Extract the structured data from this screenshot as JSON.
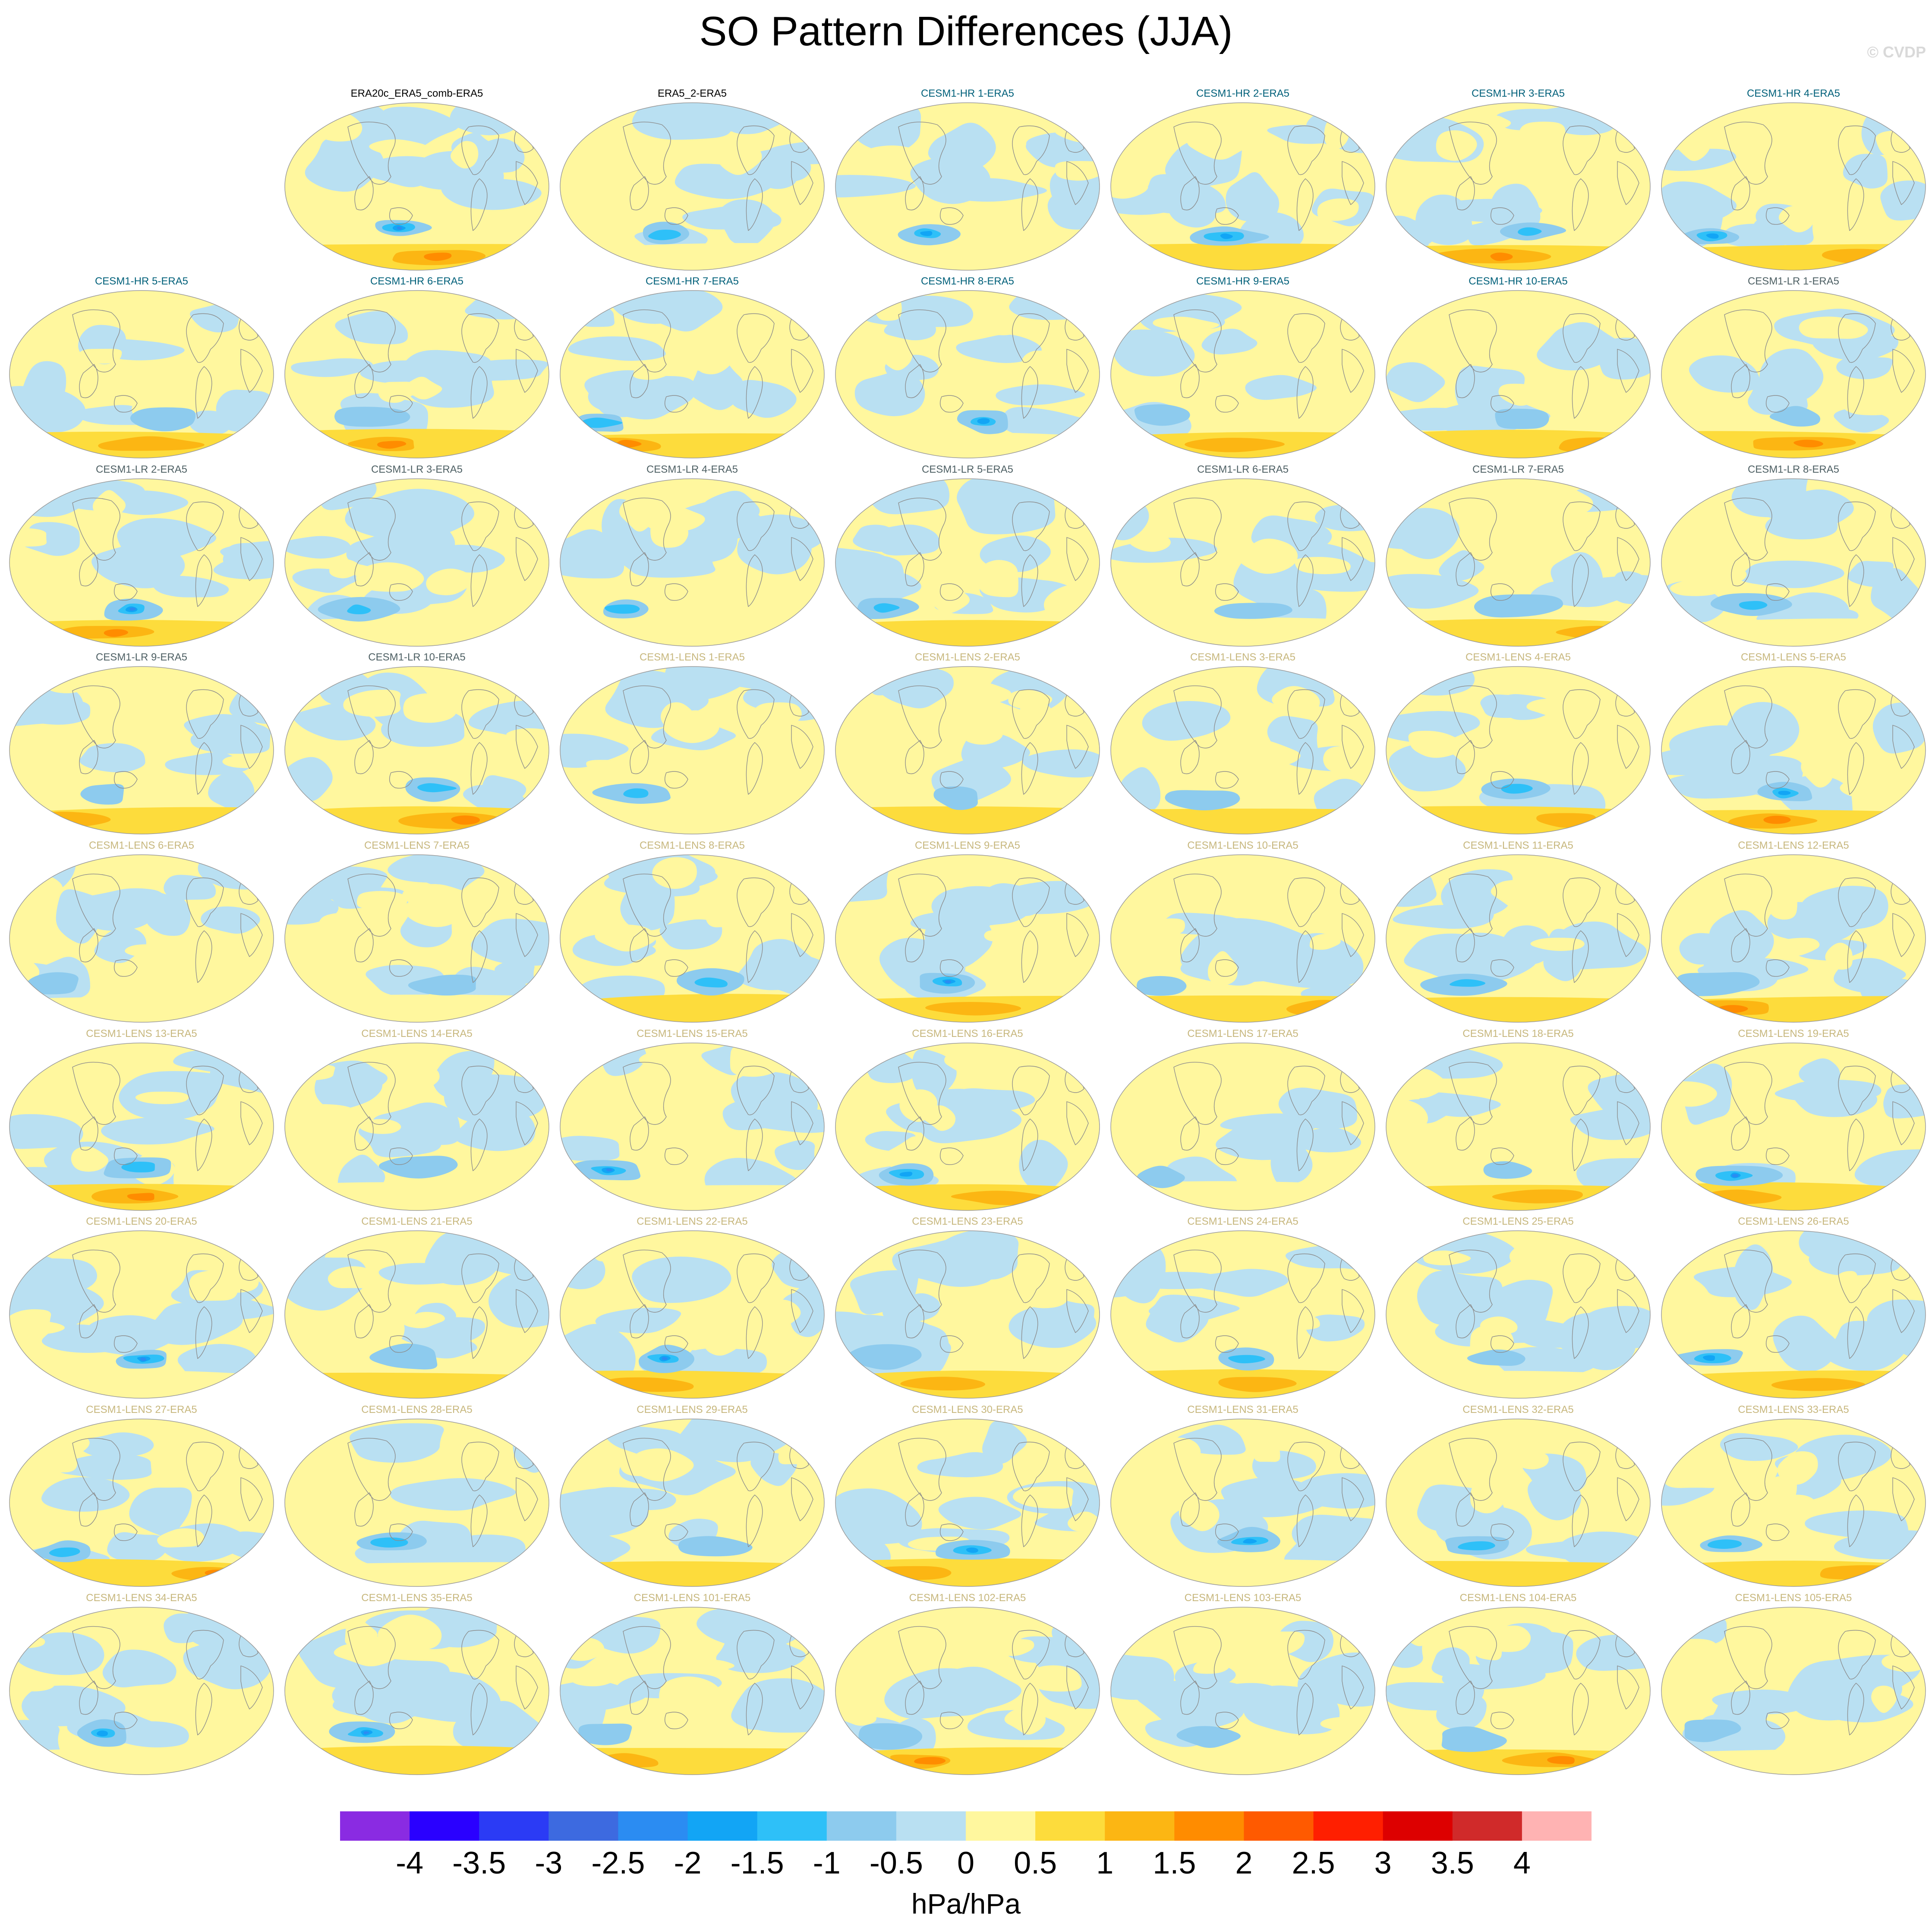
{
  "figure": {
    "title": "SO Pattern Differences (JJA)",
    "credit": "© CVDP",
    "units": "hPa/hPa"
  },
  "colorbar": {
    "tick_labels": [
      "-4",
      "-3.5",
      "-3",
      "-2.5",
      "-2",
      "-1.5",
      "-1",
      "-0.5",
      "0",
      "0.5",
      "1",
      "1.5",
      "2",
      "2.5",
      "3",
      "3.5",
      "4"
    ],
    "colors": [
      "#8a2be2",
      "#2a00ff",
      "#2b3bf5",
      "#3d6ae0",
      "#2b8cf2",
      "#12a5f5",
      "#2ec0f8",
      "#8dcbee",
      "#b9e0f2",
      "#fff79e",
      "#fddc3c",
      "#fcb613",
      "#ff8c00",
      "#ff5a00",
      "#ff1f00",
      "#dd0000",
      "#d02a2a",
      "#ffb3b3"
    ]
  },
  "groups": {
    "ERA": "#000000",
    "CESM1-HR": "#00607a",
    "CESM1-LR": "#4d5f63",
    "CESM1-LENS": "#c7b77d"
  },
  "panels": [
    {
      "label": "ERA20c_ERA5_comb-ERA5",
      "group": "ERA",
      "row": 0,
      "col": 1
    },
    {
      "label": "ERA5_2-ERA5",
      "group": "ERA",
      "row": 0,
      "col": 2
    },
    {
      "label": "CESM1-HR 1-ERA5",
      "group": "CESM1-HR",
      "row": 0,
      "col": 3
    },
    {
      "label": "CESM1-HR 2-ERA5",
      "group": "CESM1-HR",
      "row": 0,
      "col": 4
    },
    {
      "label": "CESM1-HR 3-ERA5",
      "group": "CESM1-HR",
      "row": 0,
      "col": 5
    },
    {
      "label": "CESM1-HR 4-ERA5",
      "group": "CESM1-HR",
      "row": 0,
      "col": 6
    },
    {
      "label": "CESM1-HR 5-ERA5",
      "group": "CESM1-HR",
      "row": 1,
      "col": 0
    },
    {
      "label": "CESM1-HR 6-ERA5",
      "group": "CESM1-HR",
      "row": 1,
      "col": 1
    },
    {
      "label": "CESM1-HR 7-ERA5",
      "group": "CESM1-HR",
      "row": 1,
      "col": 2
    },
    {
      "label": "CESM1-HR 8-ERA5",
      "group": "CESM1-HR",
      "row": 1,
      "col": 3
    },
    {
      "label": "CESM1-HR 9-ERA5",
      "group": "CESM1-HR",
      "row": 1,
      "col": 4
    },
    {
      "label": "CESM1-HR 10-ERA5",
      "group": "CESM1-HR",
      "row": 1,
      "col": 5
    },
    {
      "label": "CESM1-LR 1-ERA5",
      "group": "CESM1-LR",
      "row": 1,
      "col": 6
    },
    {
      "label": "CESM1-LR 2-ERA5",
      "group": "CESM1-LR",
      "row": 2,
      "col": 0
    },
    {
      "label": "CESM1-LR 3-ERA5",
      "group": "CESM1-LR",
      "row": 2,
      "col": 1
    },
    {
      "label": "CESM1-LR 4-ERA5",
      "group": "CESM1-LR",
      "row": 2,
      "col": 2
    },
    {
      "label": "CESM1-LR 5-ERA5",
      "group": "CESM1-LR",
      "row": 2,
      "col": 3
    },
    {
      "label": "CESM1-LR 6-ERA5",
      "group": "CESM1-LR",
      "row": 2,
      "col": 4
    },
    {
      "label": "CESM1-LR 7-ERA5",
      "group": "CESM1-LR",
      "row": 2,
      "col": 5
    },
    {
      "label": "CESM1-LR 8-ERA5",
      "group": "CESM1-LR",
      "row": 2,
      "col": 6
    },
    {
      "label": "CESM1-LR 9-ERA5",
      "group": "CESM1-LR",
      "row": 3,
      "col": 0
    },
    {
      "label": "CESM1-LR 10-ERA5",
      "group": "CESM1-LR",
      "row": 3,
      "col": 1
    },
    {
      "label": "CESM1-LENS 1-ERA5",
      "group": "CESM1-LENS",
      "row": 3,
      "col": 2
    },
    {
      "label": "CESM1-LENS 2-ERA5",
      "group": "CESM1-LENS",
      "row": 3,
      "col": 3
    },
    {
      "label": "CESM1-LENS 3-ERA5",
      "group": "CESM1-LENS",
      "row": 3,
      "col": 4
    },
    {
      "label": "CESM1-LENS 4-ERA5",
      "group": "CESM1-LENS",
      "row": 3,
      "col": 5
    },
    {
      "label": "CESM1-LENS 5-ERA5",
      "group": "CESM1-LENS",
      "row": 3,
      "col": 6
    },
    {
      "label": "CESM1-LENS 6-ERA5",
      "group": "CESM1-LENS",
      "row": 4,
      "col": 0
    },
    {
      "label": "CESM1-LENS 7-ERA5",
      "group": "CESM1-LENS",
      "row": 4,
      "col": 1
    },
    {
      "label": "CESM1-LENS 8-ERA5",
      "group": "CESM1-LENS",
      "row": 4,
      "col": 2
    },
    {
      "label": "CESM1-LENS 9-ERA5",
      "group": "CESM1-LENS",
      "row": 4,
      "col": 3
    },
    {
      "label": "CESM1-LENS 10-ERA5",
      "group": "CESM1-LENS",
      "row": 4,
      "col": 4
    },
    {
      "label": "CESM1-LENS 11-ERA5",
      "group": "CESM1-LENS",
      "row": 4,
      "col": 5
    },
    {
      "label": "CESM1-LENS 12-ERA5",
      "group": "CESM1-LENS",
      "row": 4,
      "col": 6
    },
    {
      "label": "CESM1-LENS 13-ERA5",
      "group": "CESM1-LENS",
      "row": 5,
      "col": 0
    },
    {
      "label": "CESM1-LENS 14-ERA5",
      "group": "CESM1-LENS",
      "row": 5,
      "col": 1
    },
    {
      "label": "CESM1-LENS 15-ERA5",
      "group": "CESM1-LENS",
      "row": 5,
      "col": 2
    },
    {
      "label": "CESM1-LENS 16-ERA5",
      "group": "CESM1-LENS",
      "row": 5,
      "col": 3
    },
    {
      "label": "CESM1-LENS 17-ERA5",
      "group": "CESM1-LENS",
      "row": 5,
      "col": 4
    },
    {
      "label": "CESM1-LENS 18-ERA5",
      "group": "CESM1-LENS",
      "row": 5,
      "col": 5
    },
    {
      "label": "CESM1-LENS 19-ERA5",
      "group": "CESM1-LENS",
      "row": 5,
      "col": 6
    },
    {
      "label": "CESM1-LENS 20-ERA5",
      "group": "CESM1-LENS",
      "row": 6,
      "col": 0
    },
    {
      "label": "CESM1-LENS 21-ERA5",
      "group": "CESM1-LENS",
      "row": 6,
      "col": 1
    },
    {
      "label": "CESM1-LENS 22-ERA5",
      "group": "CESM1-LENS",
      "row": 6,
      "col": 2
    },
    {
      "label": "CESM1-LENS 23-ERA5",
      "group": "CESM1-LENS",
      "row": 6,
      "col": 3
    },
    {
      "label": "CESM1-LENS 24-ERA5",
      "group": "CESM1-LENS",
      "row": 6,
      "col": 4
    },
    {
      "label": "CESM1-LENS 25-ERA5",
      "group": "CESM1-LENS",
      "row": 6,
      "col": 5
    },
    {
      "label": "CESM1-LENS 26-ERA5",
      "group": "CESM1-LENS",
      "row": 6,
      "col": 6
    },
    {
      "label": "CESM1-LENS 27-ERA5",
      "group": "CESM1-LENS",
      "row": 7,
      "col": 0
    },
    {
      "label": "CESM1-LENS 28-ERA5",
      "group": "CESM1-LENS",
      "row": 7,
      "col": 1
    },
    {
      "label": "CESM1-LENS 29-ERA5",
      "group": "CESM1-LENS",
      "row": 7,
      "col": 2
    },
    {
      "label": "CESM1-LENS 30-ERA5",
      "group": "CESM1-LENS",
      "row": 7,
      "col": 3
    },
    {
      "label": "CESM1-LENS 31-ERA5",
      "group": "CESM1-LENS",
      "row": 7,
      "col": 4
    },
    {
      "label": "CESM1-LENS 32-ERA5",
      "group": "CESM1-LENS",
      "row": 7,
      "col": 5
    },
    {
      "label": "CESM1-LENS 33-ERA5",
      "group": "CESM1-LENS",
      "row": 7,
      "col": 6
    },
    {
      "label": "CESM1-LENS 34-ERA5",
      "group": "CESM1-LENS",
      "row": 8,
      "col": 0
    },
    {
      "label": "CESM1-LENS 35-ERA5",
      "group": "CESM1-LENS",
      "row": 8,
      "col": 1
    },
    {
      "label": "CESM1-LENS 101-ERA5",
      "group": "CESM1-LENS",
      "row": 8,
      "col": 2
    },
    {
      "label": "CESM1-LENS 102-ERA5",
      "group": "CESM1-LENS",
      "row": 8,
      "col": 3
    },
    {
      "label": "CESM1-LENS 103-ERA5",
      "group": "CESM1-LENS",
      "row": 8,
      "col": 4
    },
    {
      "label": "CESM1-LENS 104-ERA5",
      "group": "CESM1-LENS",
      "row": 8,
      "col": 5
    },
    {
      "label": "CESM1-LENS 105-ERA5",
      "group": "CESM1-LENS",
      "row": 8,
      "col": 6
    }
  ]
}
